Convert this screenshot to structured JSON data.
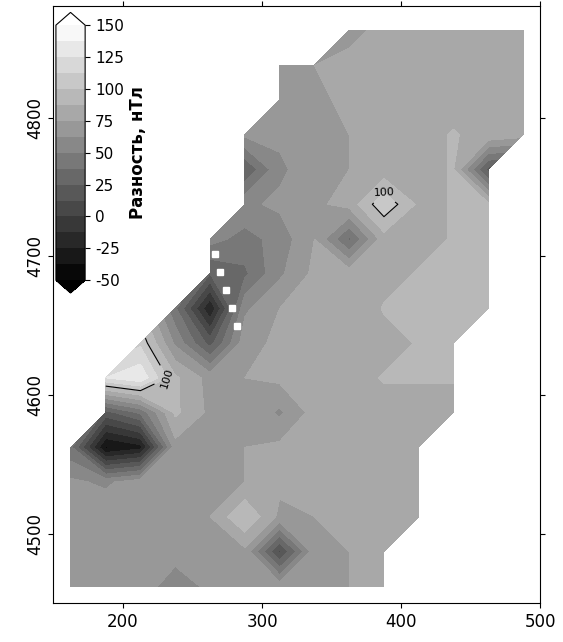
{
  "chart_data": {
    "type": "contour",
    "colorbar_label": "Разность, нТл",
    "colorbar_range": [
      -50,
      150
    ],
    "colorbar_ticks": [
      -50,
      -25,
      0,
      25,
      50,
      75,
      100,
      125,
      150
    ],
    "color": "gray",
    "contour_lines": [
      100
    ],
    "xlim": [
      150,
      500
    ],
    "ylim": [
      4450,
      4880
    ],
    "xticks": [
      200,
      300,
      400,
      500
    ],
    "yticks": [
      4500,
      4600,
      4700,
      4800
    ],
    "x": [
      162.5,
      187.5,
      212.5,
      237.5,
      262.5,
      287.5,
      312.5,
      337.5,
      362.5,
      387.5,
      412.5,
      437.5,
      462.5,
      487.5
    ],
    "y": [
      4462.5,
      4487.5,
      4512.5,
      4537.5,
      4562.5,
      4587.5,
      4612.5,
      4637.5,
      4662.5,
      4687.5,
      4712.5,
      4737.5,
      4762.5,
      4787.5,
      4812.5,
      4837.5,
      4862.5
    ],
    "values": [
      [
        70,
        72,
        75,
        50,
        68,
        72,
        70,
        72,
        75,
        78,
        null,
        null,
        null,
        null
      ],
      [
        72,
        70,
        75,
        72,
        70,
        72,
        10,
        70,
        75,
        78,
        null,
        null,
        null,
        null
      ],
      [
        70,
        72,
        70,
        72,
        75,
        100,
        72,
        75,
        78,
        80,
        80,
        null,
        null,
        null
      ],
      [
        65,
        60,
        70,
        75,
        72,
        75,
        78,
        78,
        80,
        82,
        82,
        null,
        null,
        null
      ],
      [
        40,
        -40,
        -30,
        70,
        75,
        75,
        78,
        80,
        82,
        85,
        85,
        null,
        null,
        null
      ],
      [
        null,
        20,
        40,
        90,
        72,
        75,
        60,
        80,
        82,
        85,
        85,
        85,
        null,
        null
      ],
      [
        null,
        125,
        135,
        90,
        70,
        75,
        78,
        80,
        85,
        88,
        88,
        88,
        null,
        null
      ],
      [
        null,
        null,
        110,
        60,
        20,
        70,
        78,
        80,
        82,
        85,
        88,
        88,
        null,
        null
      ],
      [
        null,
        null,
        null,
        40,
        -25,
        60,
        75,
        80,
        82,
        88,
        88,
        90,
        88,
        null
      ],
      [
        null,
        null,
        null,
        null,
        25,
        35,
        60,
        78,
        82,
        85,
        88,
        90,
        88,
        null
      ],
      [
        null,
        null,
        null,
        null,
        55,
        45,
        55,
        75,
        35,
        82,
        85,
        88,
        90,
        null
      ],
      [
        null,
        null,
        null,
        null,
        null,
        60,
        65,
        72,
        80,
        110,
        85,
        88,
        90,
        null
      ],
      [
        null,
        null,
        null,
        null,
        null,
        25,
        60,
        70,
        75,
        80,
        85,
        88,
        20,
        null
      ],
      [
        null,
        null,
        null,
        null,
        null,
        65,
        65,
        70,
        75,
        80,
        85,
        88,
        85,
        80
      ],
      [
        null,
        null,
        null,
        null,
        null,
        null,
        75,
        72,
        78,
        82,
        85,
        85,
        85,
        82
      ],
      [
        null,
        null,
        null,
        null,
        null,
        null,
        70,
        75,
        80,
        82,
        85,
        85,
        85,
        82
      ],
      [
        null,
        null,
        null,
        null,
        null,
        null,
        null,
        null,
        70,
        80,
        85,
        85,
        85,
        82
      ]
    ],
    "profile": {
      "x": [
        282,
        278,
        274,
        270,
        266
      ],
      "y": [
        4650,
        4663,
        4676,
        4689,
        4702
      ],
      "color": "white",
      "marker": "square"
    }
  }
}
